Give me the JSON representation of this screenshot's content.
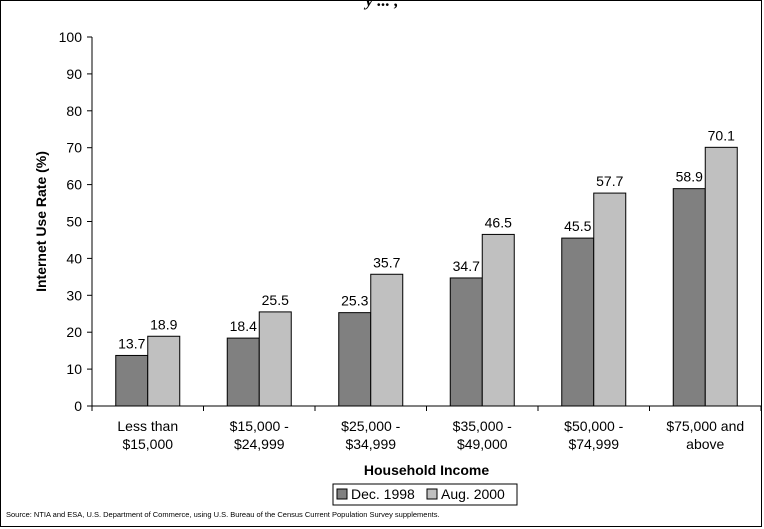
{
  "title_clipped": "y ... ,",
  "source": "Source: NTIA and ESA, U.S. Department of Commerce, using U.S. Bureau of the Census Current Population Survey supplements.",
  "chart_data": {
    "type": "bar",
    "categories": [
      [
        "Less than",
        "$15,000"
      ],
      [
        "$15,000 -",
        "$24,999"
      ],
      [
        "$25,000 -",
        "$34,999"
      ],
      [
        "$35,000 -",
        "$49,000"
      ],
      [
        "$50,000 -",
        "$74,999"
      ],
      [
        "$75,000 and",
        "above"
      ]
    ],
    "series": [
      {
        "name": "Dec. 1998",
        "color": "#808080",
        "values": [
          13.7,
          18.4,
          25.3,
          34.7,
          45.5,
          58.9
        ]
      },
      {
        "name": "Aug. 2000",
        "color": "#c0c0c0",
        "values": [
          18.9,
          25.5,
          35.7,
          46.5,
          57.7,
          70.1
        ]
      }
    ],
    "xlabel": "Household Income",
    "ylabel": "Internet Use Rate (%)",
    "ylim": [
      0,
      100
    ],
    "yticks": [
      0,
      10,
      20,
      30,
      40,
      50,
      60,
      70,
      80,
      90,
      100
    ],
    "grid": false,
    "legend_position": "bottom"
  }
}
